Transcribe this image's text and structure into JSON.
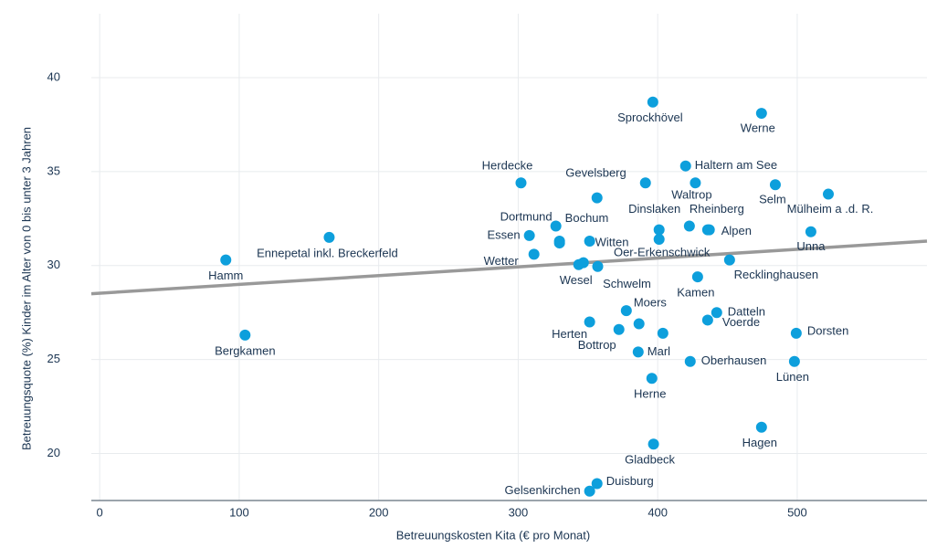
{
  "chart_data": {
    "type": "scatter",
    "xlabel": "Betreuungskosten Kita (€ pro Monat)",
    "ylabel": "Betreuungsquote (%) Kinder im Alter von 0 bis unter 3 Jahren",
    "color": "#0d9fdc",
    "x": [
      90.4,
      104.2,
      164.5,
      302,
      329.6,
      327,
      308,
      311.3,
      329.6,
      391.2,
      356.5,
      351.2,
      343.4,
      346.7,
      357,
      396.5,
      427,
      420,
      401,
      401,
      422.7,
      435.8,
      437,
      474.4,
      484.3,
      522.3,
      509.8,
      451.5,
      428.6,
      377.5,
      351.2,
      372.2,
      386.6,
      403.7,
      386,
      442.3,
      435.8,
      499.3,
      423.3,
      498,
      395.8,
      474.4,
      397,
      356.5,
      351.2
    ],
    "y": [
      30.3,
      26.3,
      31.5,
      34.4,
      31.3,
      32.1,
      31.6,
      30.6,
      31.2,
      34.4,
      33.6,
      31.3,
      30.05,
      30.15,
      29.95,
      38.7,
      34.4,
      35.3,
      31.9,
      31.4,
      32.1,
      31.9,
      31.9,
      38.1,
      34.3,
      33.8,
      31.8,
      30.3,
      29.4,
      27.6,
      27.0,
      26.6,
      26.9,
      26.4,
      25.4,
      27.5,
      27.1,
      26.4,
      24.9,
      24.9,
      24.0,
      21.4,
      20.5,
      18.4,
      18.0
    ],
    "labels": [
      "Hamm",
      "Bergkamen",
      "Ennepetal inkl. Breckerfeld",
      "Herdecke",
      "Dortmund",
      "Bochum",
      "Essen",
      "Wetter",
      null,
      "Gevelsberg",
      null,
      "Witten",
      "Wesel",
      null,
      "Schwelm",
      "Sprockhövel",
      "Waltrop",
      "Haltern am See",
      "Dinslaken",
      "Oer-Erkenschwick",
      "Rheinberg",
      null,
      "Alpen",
      "Werne",
      "Selm",
      "Mülheim a .d. R.",
      "Unna",
      "Recklinghausen",
      "Kamen",
      "Moers",
      "Herten",
      "Bottrop",
      null,
      null,
      "Marl",
      "Datteln",
      "Voerde",
      "Dorsten",
      "Oberhausen",
      "Lünen",
      "Herne",
      "Hagen",
      "Gladbeck",
      "Duisburg",
      "Gelsenkirchen"
    ],
    "trendline": {
      "x": [
        -6,
        593
      ],
      "y": [
        28.5,
        31.3
      ],
      "color": "#999999"
    },
    "xlim": [
      -6,
      593
    ],
    "ylim": [
      17.5,
      43.4
    ],
    "xticks": [
      0,
      100,
      200,
      300,
      400,
      500
    ],
    "yticks": [
      20,
      25,
      30,
      35,
      40
    ],
    "grid": true
  }
}
